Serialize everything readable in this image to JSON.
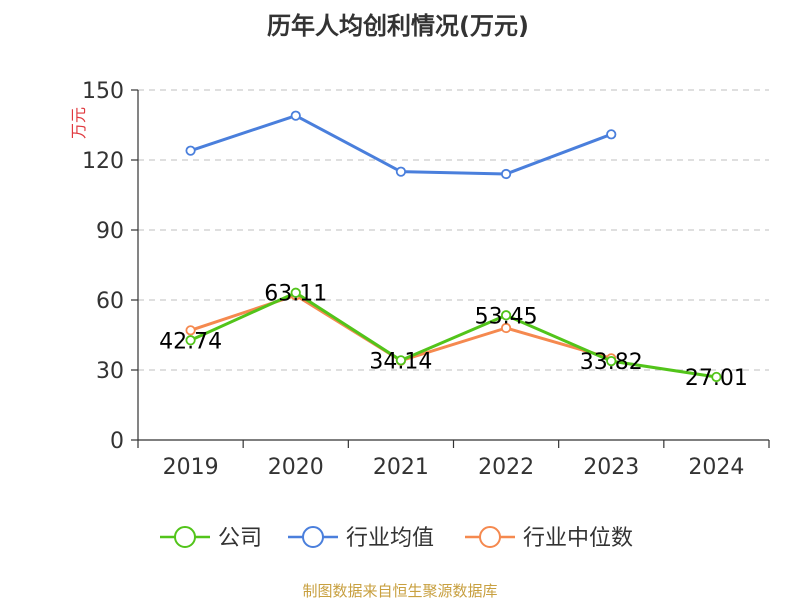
{
  "chart_data": {
    "type": "line",
    "title": "历年人均创利情况(万元)",
    "ylabel": "万元",
    "ylim": [
      0,
      150
    ],
    "yticks": [
      0,
      30,
      60,
      90,
      120,
      150
    ],
    "categories": [
      "2019",
      "2020",
      "2021",
      "2022",
      "2023",
      "2024"
    ],
    "grid": true,
    "legend_position": "bottom",
    "series": [
      {
        "name": "公司",
        "color": "#52c41a",
        "values": [
          42.74,
          63.11,
          34.14,
          53.45,
          33.82,
          27.01
        ],
        "labels": [
          "42.74",
          "63.11",
          "34.14",
          "53.45",
          "33.82",
          "27.01"
        ]
      },
      {
        "name": "行业均值",
        "color": "#4a7fdc",
        "values": [
          124,
          139,
          115,
          114,
          131,
          null
        ]
      },
      {
        "name": "行业中位数",
        "color": "#f5894f",
        "values": [
          47,
          62,
          34,
          48,
          35,
          null
        ]
      }
    ]
  },
  "source": "制图数据来自恒生聚源数据库",
  "colors": {
    "ylabel": "#e0383e",
    "source": "#c8a040",
    "axis": "#333333",
    "grid": "#cccccc"
  }
}
